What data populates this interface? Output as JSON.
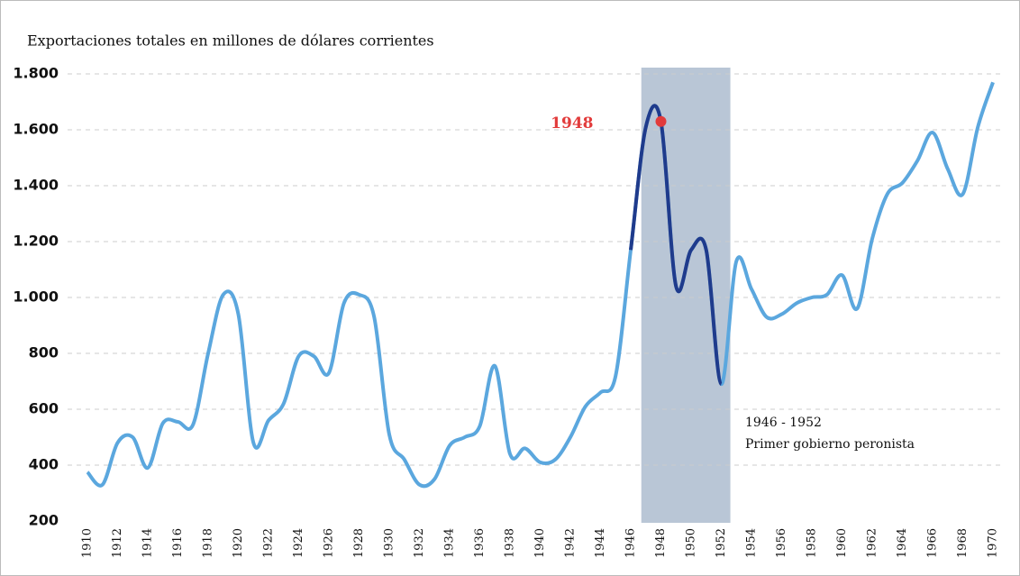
{
  "chart_data": {
    "type": "line",
    "title": "Exportaciones totales en millones de dólares corrientes",
    "x": [
      1910,
      1911,
      1912,
      1913,
      1914,
      1915,
      1916,
      1917,
      1918,
      1919,
      1920,
      1921,
      1922,
      1923,
      1924,
      1925,
      1926,
      1927,
      1928,
      1929,
      1930,
      1931,
      1932,
      1933,
      1934,
      1935,
      1936,
      1937,
      1938,
      1939,
      1940,
      1941,
      1942,
      1943,
      1944,
      1945,
      1946,
      1947,
      1948,
      1949,
      1950,
      1951,
      1952,
      1953,
      1954,
      1955,
      1956,
      1957,
      1958,
      1959,
      1960,
      1961,
      1962,
      1963,
      1964,
      1965,
      1966,
      1967,
      1968,
      1969,
      1970
    ],
    "values": [
      375,
      330,
      480,
      500,
      390,
      550,
      555,
      545,
      800,
      1010,
      940,
      480,
      560,
      620,
      790,
      790,
      730,
      980,
      1010,
      930,
      510,
      420,
      330,
      350,
      470,
      500,
      540,
      755,
      440,
      460,
      410,
      420,
      500,
      610,
      660,
      720,
      1170,
      1610,
      1630,
      1040,
      1170,
      1170,
      690,
      1130,
      1030,
      930,
      940,
      980,
      1000,
      1010,
      1080,
      960,
      1210,
      1370,
      1410,
      1490,
      1590,
      1460,
      1370,
      1610,
      1770
    ],
    "color": "#5ba7de",
    "highlight": {
      "from": 1946,
      "to": 1952,
      "color": "#1f3b8c"
    },
    "shaded_range": [
      1946.7,
      1952.6
    ],
    "shade_color": "#b9c6d6",
    "marker": {
      "x": 1948,
      "value": 1630,
      "label": "1948",
      "color": "#e23b3b"
    },
    "annotation": [
      "1946 - 1952",
      "Primer gobierno peronista"
    ],
    "xlim": [
      1910,
      1970
    ],
    "xticks": [
      1910,
      1912,
      1914,
      1916,
      1918,
      1920,
      1922,
      1924,
      1926,
      1928,
      1930,
      1932,
      1934,
      1936,
      1938,
      1940,
      1942,
      1944,
      1946,
      1948,
      1950,
      1952,
      1954,
      1956,
      1958,
      1960,
      1962,
      1964,
      1966,
      1968,
      1970
    ],
    "ylim": [
      200,
      1800
    ],
    "yticks": [
      200,
      400,
      600,
      800,
      {
        "value": 1000,
        "label": "1.000"
      },
      {
        "value": 1200,
        "label": "1.200"
      },
      {
        "value": 1400,
        "label": "1.400"
      },
      {
        "value": 1600,
        "label": "1.600"
      },
      {
        "value": 1800,
        "label": "1.800"
      }
    ],
    "grid": true
  }
}
